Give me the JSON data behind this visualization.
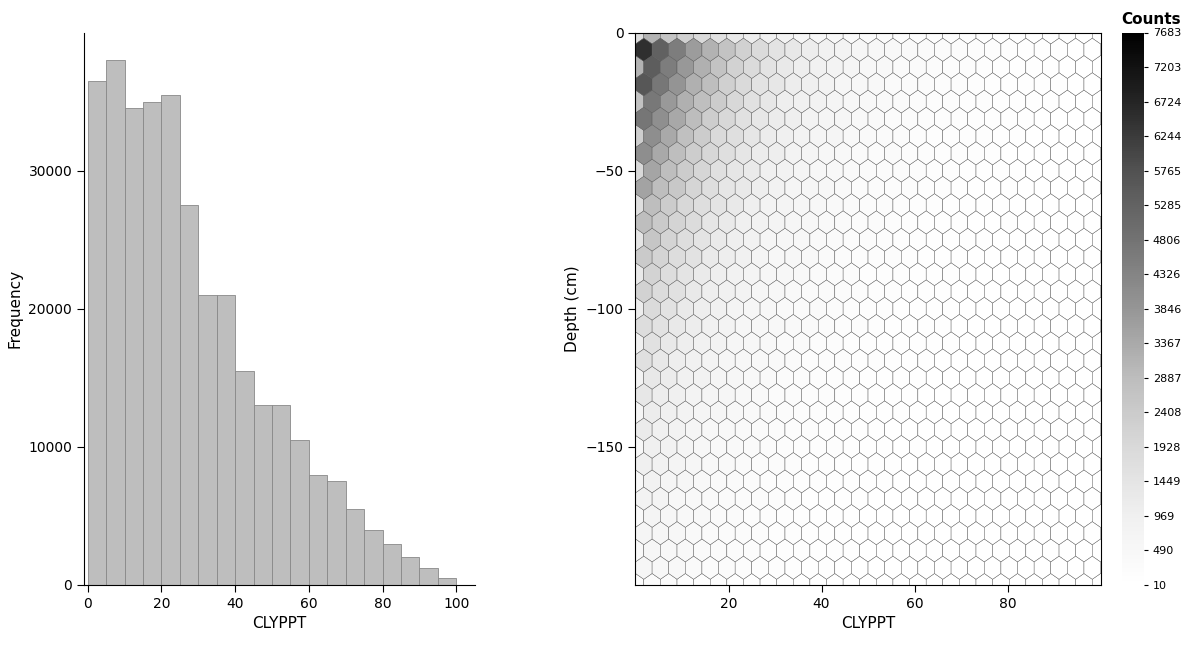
{
  "hist_bar_color": "#bebebe",
  "hist_bar_edgecolor": "#888888",
  "hist_values": [
    36500,
    38000,
    34500,
    35000,
    35500,
    27500,
    21000,
    21000,
    15500,
    13000,
    13000,
    10500,
    8000,
    7500,
    5500,
    4000,
    3000,
    2000,
    1200,
    500
  ],
  "hist_bins": [
    0,
    5,
    10,
    15,
    20,
    25,
    30,
    35,
    40,
    45,
    50,
    55,
    60,
    65,
    70,
    75,
    80,
    85,
    90,
    95,
    100
  ],
  "hist_xlabel": "CLYPPT",
  "hist_ylabel": "Frequency",
  "hist_xlim": [
    -1,
    105
  ],
  "hist_ylim": [
    0,
    40000
  ],
  "hist_xticks": [
    0,
    20,
    40,
    60,
    80,
    100
  ],
  "hist_yticks": [
    0,
    10000,
    20000,
    30000
  ],
  "hex_xlabel": "CLYPPT",
  "hex_ylabel": "Depth (cm)",
  "hex_xlim": [
    0,
    100
  ],
  "hex_ylim": [
    -200,
    0
  ],
  "hex_xticks": [
    20,
    40,
    60,
    80
  ],
  "hex_yticks": [
    0,
    -50,
    -100,
    -150
  ],
  "colorbar_label": "Counts",
  "colorbar_ticks": [
    7683,
    7203,
    6724,
    6244,
    5765,
    5285,
    4806,
    4326,
    3846,
    3367,
    2887,
    2408,
    1928,
    1449,
    969,
    490,
    10
  ],
  "vmin": 10,
  "vmax": 7683,
  "hex_gridsize": 28,
  "background_color": "#ffffff",
  "seed": 42
}
